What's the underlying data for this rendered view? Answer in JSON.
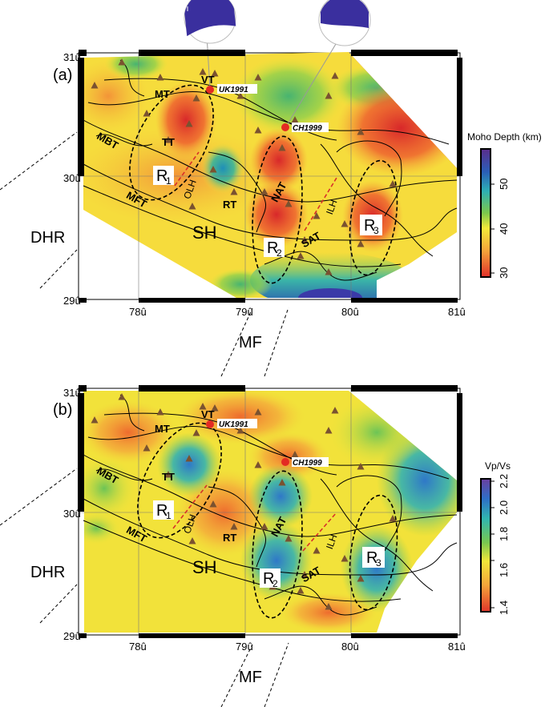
{
  "panels": [
    {
      "label": "(a)",
      "colorbar": {
        "title": "Moho Depth (km)",
        "ticks": [
          "50",
          "40",
          "30"
        ],
        "colors": [
          "#5a2d8c",
          "#2a5fb8",
          "#2eb0b4",
          "#7cc84c",
          "#f4ea3a",
          "#f5a23a",
          "#e0302a"
        ]
      }
    },
    {
      "label": "(b)",
      "colorbar": {
        "title": "Vp/Vs",
        "ticks": [
          "2.2",
          "2.0",
          "1.8",
          "1.6",
          "1.4"
        ],
        "colors": [
          "#6a3fa0",
          "#2e6fc8",
          "#31b6b0",
          "#78c850",
          "#f2e63a",
          "#f5a53a",
          "#e0352a"
        ]
      }
    }
  ],
  "axes": {
    "y_ticks": [
      "31û",
      "30û",
      "29û"
    ],
    "x_ticks": [
      "78û",
      "79û",
      "80û",
      "81û"
    ]
  },
  "labels": {
    "VT": "VT",
    "MT": "MT",
    "TT": "TT",
    "MBT": "MBT",
    "MFT": "MFT",
    "OLH": "OLH",
    "RT": "RT",
    "NAT": "NAT",
    "SAT": "SAT",
    "ILH": "ILH",
    "SH": "SH",
    "DHR": "DHR",
    "MF": "MF",
    "R": "R",
    "r1": "1",
    "r2": "2",
    "r3": "3"
  },
  "events": {
    "uk": "UK1991",
    "ch": "CH1999"
  },
  "colors": {
    "event": "#e32b23",
    "station": "#7a5230",
    "beachball": "#3a2f9e"
  }
}
